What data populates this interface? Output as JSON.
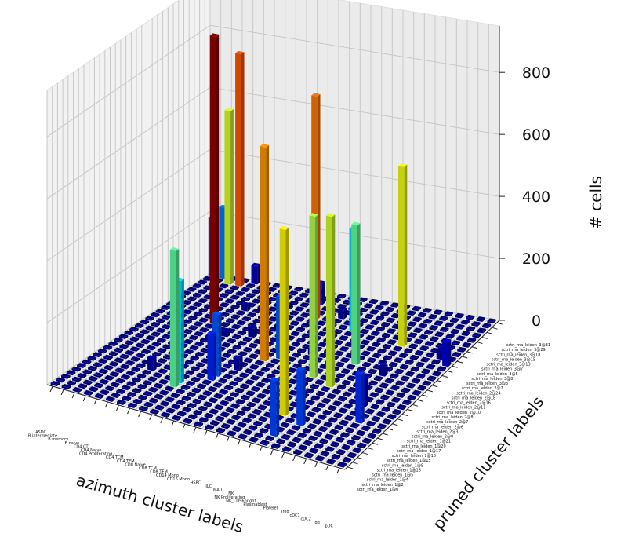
{
  "chart_data": {
    "type": "bar3d",
    "title": "",
    "xlabel": "azimuth cluster labels",
    "ylabel": "pruned cluster labels",
    "zlabel": "# cells",
    "zlim": [
      0,
      950
    ],
    "zticks": [
      "0",
      "200",
      "400",
      "600",
      "800"
    ],
    "colormap": "jet",
    "grid": true,
    "x_categories": [
      "ASDC",
      "B intermediate",
      "B memory",
      "B naive",
      "CD4 CTL",
      "CD4 Naive",
      "CD4 Proliferating",
      "CD4 TCM",
      "CD4 TEM",
      "CD8 Naive",
      "CD8 TCM",
      "CD8 TEM",
      "CD14 Mono",
      "CD16 Mono",
      "HSPC",
      "ILC",
      "MAIT",
      "NK",
      "NK Proliferating",
      "NK_CD56bright",
      "Plasmablast",
      "Platelet",
      "Treg",
      "cDC1",
      "cDC2",
      "gdT",
      "pDC"
    ],
    "y_categories": [
      "sctri_rna_leiden_1@0",
      "sctri_rna_leiden_1@2",
      "sctri_rna_leiden_1@4",
      "sctri_rna_leiden_1@5",
      "sctri_rna_leiden_1@13",
      "sctri_rna_leiden_1@9",
      "sctri_rna_leiden_1@15",
      "sctri_rna_leiden_1@16",
      "sctri_rna_leiden_1@17",
      "sctri_rna_leiden_1@20",
      "sctri_rna_leiden_1@21",
      "sctri_rna_leiden_2@0",
      "sctri_rna_leiden_2@3",
      "sctri_rna_leiden_2@6",
      "sctri_rna_leiden_2@7",
      "sctri_rna_leiden_2@8",
      "sctri_rna_leiden_2@10",
      "sctri_rna_leiden_2@11",
      "sctri_rna_leiden_2@16",
      "sctri_rna_leiden_2@18",
      "sctri_rna_leiden_2@24",
      "sctri_rna_leiden_2@2",
      "sctri_rna_leiden_3@3",
      "sctri_rna_leiden_3@8",
      "sctri_rna_leiden_3@5",
      "sctri_rna_leiden_3@7",
      "sctri_rna_leiden_3@13",
      "sctri_rna_leiden_3@15",
      "sctri_rna_leiden_3@18",
      "sctri_rna_leiden_3@29",
      "sctri_rna_leiden_3@31"
    ],
    "bars": [
      {
        "x": "ASDC",
        "y": "sctri_rna_leiden_3@31",
        "value": 190
      },
      {
        "x": "B intermediate",
        "y": "sctri_rna_leiden_3@31",
        "value": 230
      },
      {
        "x": "B memory",
        "y": "sctri_rna_leiden_3@29",
        "value": 560
      },
      {
        "x": "B naive",
        "y": "sctri_rna_leiden_3@29",
        "value": 750
      },
      {
        "x": "CD4 CTL",
        "y": "sctri_rna_leiden_3@24",
        "value": 450
      },
      {
        "x": "CD4 CTL",
        "y": "sctri_rna_leiden_3@31",
        "value": 60
      },
      {
        "x": "CD4 Naive",
        "y": "sctri_rna_leiden_2@24",
        "value": 930
      },
      {
        "x": "CD4 Naive",
        "y": "sctri_rna_leiden_1@17",
        "value": 40
      },
      {
        "x": "CD4 Proliferating",
        "y": "sctri_rna_leiden_3@5",
        "value": 20
      },
      {
        "x": "CD4 TCM",
        "y": "sctri_rna_leiden_2@16",
        "value": 20
      },
      {
        "x": "CD4 TEM",
        "y": "sctri_rna_leiden_1@16",
        "value": 330
      },
      {
        "x": "CD4 TEM",
        "y": "sctri_rna_leiden_1@15",
        "value": 440
      },
      {
        "x": "CD8 Naive",
        "y": "sctri_rna_leiden_2@18",
        "value": 30
      },
      {
        "x": "CD8 TCM",
        "y": "sctri_rna_leiden_1@21",
        "value": 200
      },
      {
        "x": "CD8 TCM",
        "y": "sctri_rna_leiden_1@20",
        "value": 150
      },
      {
        "x": "CD8 TEM",
        "y": "sctri_rna_leiden_2@3",
        "value": 40
      },
      {
        "x": "CD8 TEM",
        "y": "sctri_rna_leiden_3@18",
        "value": 70
      },
      {
        "x": "CD14 Mono",
        "y": "sctri_rna_leiden_3@7",
        "value": 720
      },
      {
        "x": "CD14 Mono",
        "y": "sctri_rna_leiden_2@8",
        "value": 690
      },
      {
        "x": "CD16 Mono",
        "y": "sctri_rna_leiden_2@10",
        "value": 200
      },
      {
        "x": "HSPC",
        "y": "sctri_rna_leiden_3@13",
        "value": 30
      },
      {
        "x": "ILC",
        "y": "sctri_rna_leiden_2@16",
        "value": 20
      },
      {
        "x": "MAIT",
        "y": "sctri_rna_leiden_3@5",
        "value": 330
      },
      {
        "x": "NK",
        "y": "sctri_rna_leiden_2@7",
        "value": 520
      },
      {
        "x": "NK Proliferating",
        "y": "sctri_rna_leiden_1@15",
        "value": 600
      },
      {
        "x": "NK_CD56bright",
        "y": "sctri_rna_leiden_2@16",
        "value": 450
      },
      {
        "x": "NK_CD56bright",
        "y": "sctri_rna_leiden_2@6",
        "value": 550
      },
      {
        "x": "NK_CD56bright",
        "y": "sctri_rna_leiden_1@4",
        "value": 180
      },
      {
        "x": "Plasmablast",
        "y": "sctri_rna_leiden_1@9",
        "value": 180
      },
      {
        "x": "Platelet",
        "y": "sctri_rna_leiden_3@8",
        "value": 580
      },
      {
        "x": "Treg",
        "y": "sctri_rna_leiden_2@11",
        "value": 30
      },
      {
        "x": "cDC1",
        "y": "sctri_rna_leiden_2@0",
        "value": 90
      },
      {
        "x": "cDC2",
        "y": "sctri_rna_leiden_1@17",
        "value": 160
      },
      {
        "x": "gdT",
        "y": "sctri_rna_leiden_3@3",
        "value": 30
      },
      {
        "x": "pDC",
        "y": "sctri_rna_leiden_2@2",
        "value": 80
      }
    ]
  }
}
